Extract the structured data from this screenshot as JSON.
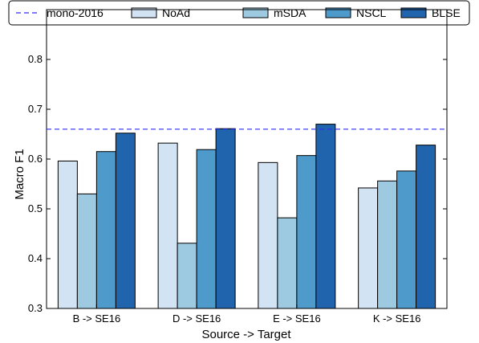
{
  "chart_data": {
    "type": "bar",
    "title": "",
    "xlabel": "Source -> Target",
    "ylabel": "Macro F1",
    "ylim": [
      0.3,
      0.9
    ],
    "yticks": [
      0.3,
      0.4,
      0.5,
      0.6,
      0.7,
      0.8
    ],
    "ytick_labels": [
      "0.3",
      "0.4",
      "0.5",
      "0.6",
      "0.7",
      "0.8"
    ],
    "categories": [
      "B -> SE16",
      "D -> SE16",
      "E -> SE16",
      "K -> SE16"
    ],
    "series": [
      {
        "name": "NoAd",
        "color": "#d2e3f3",
        "values": [
          0.596,
          0.632,
          0.593,
          0.542
        ]
      },
      {
        "name": "mSDA",
        "color": "#9ecae1",
        "values": [
          0.53,
          0.431,
          0.482,
          0.556
        ]
      },
      {
        "name": "NSCL",
        "color": "#4e9acb",
        "values": [
          0.615,
          0.619,
          0.607,
          0.576
        ]
      },
      {
        "name": "BLSE",
        "color": "#1f64ad",
        "values": [
          0.652,
          0.661,
          0.67,
          0.628
        ]
      }
    ],
    "reference_line": {
      "name": "mono-2016",
      "value": 0.66,
      "color": "#2e2ef0",
      "style": "dashed"
    },
    "legend_position": "top",
    "grid": false
  }
}
